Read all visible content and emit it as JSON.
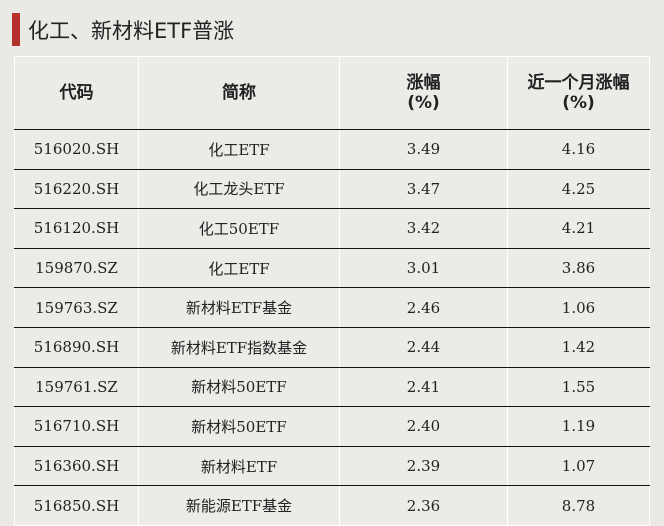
{
  "title": "化工、新材料ETF普涨",
  "accent": "#b5302a",
  "headers": [
    "代码",
    "简称",
    "涨幅",
    "(%)",
    "近一个月涨幅",
    "(%)"
  ],
  "rows": [
    [
      "516020.SH",
      "化工ETF",
      "3.49",
      "4.16"
    ],
    [
      "516220.SH",
      "化工龙头ETF",
      "3.47",
      "4.25"
    ],
    [
      "516120.SH",
      "化工50ETF",
      "3.42",
      "4.21"
    ],
    [
      "159870.SZ",
      "化工ETF",
      "3.01",
      "3.86"
    ],
    [
      "159763.SZ",
      "新材料ETF基金",
      "2.46",
      "1.06"
    ],
    [
      "516890.SH",
      "新材料ETF指数基金",
      "2.44",
      "1.42"
    ],
    [
      "159761.SZ",
      "新材料50ETF",
      "2.41",
      "1.55"
    ],
    [
      "516710.SH",
      "新材料50ETF",
      "2.40",
      "1.19"
    ],
    [
      "516360.SH",
      "新材料ETF",
      "2.39",
      "1.07"
    ],
    [
      "516850.SH",
      "新能源ETF基金",
      "2.36",
      "8.78"
    ]
  ]
}
